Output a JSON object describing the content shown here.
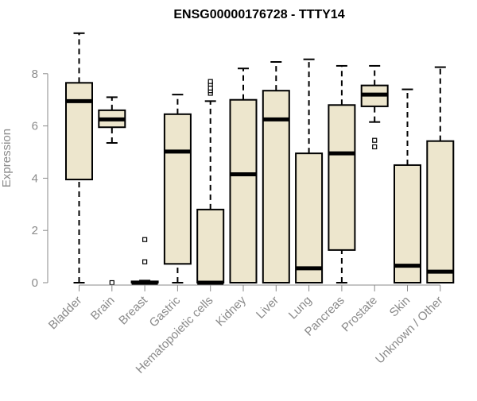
{
  "chart_data": {
    "type": "boxplot",
    "title": "ENSG00000176728 - TTTY14",
    "ylabel": "Expression",
    "xlabel": "",
    "ylim": [
      0,
      9.6
    ],
    "yticks": [
      0,
      2,
      4,
      6,
      8
    ],
    "grid": false,
    "categories": [
      "Bladder",
      "Brain",
      "Breast",
      "Gastric",
      "Hematopoietic cells",
      "Kidney",
      "Liver",
      "Lung",
      "Pancreas",
      "Prostate",
      "Skin",
      "Unknown / Other"
    ],
    "boxes": [
      {
        "category": "Bladder",
        "whisker_low": 0.0,
        "q1": 3.95,
        "median": 6.95,
        "q3": 7.65,
        "whisker_high": 9.55,
        "outliers": []
      },
      {
        "category": "Brain",
        "whisker_low": 5.35,
        "q1": 5.95,
        "median": 6.25,
        "q3": 6.6,
        "whisker_high": 7.1,
        "outliers": [
          0.0
        ]
      },
      {
        "category": "Breast",
        "whisker_low": 0.0,
        "q1": 0.0,
        "median": 0.0,
        "q3": 0.05,
        "whisker_high": 0.08,
        "outliers": [
          0.8,
          1.65
        ]
      },
      {
        "category": "Gastric",
        "whisker_low": 0.0,
        "q1": 0.72,
        "median": 5.02,
        "q3": 6.45,
        "whisker_high": 7.2,
        "outliers": []
      },
      {
        "category": "Hematopoietic cells",
        "whisker_low": 0.0,
        "q1": 0.0,
        "median": 0.0,
        "q3": 2.8,
        "whisker_high": 6.95,
        "outliers": [
          7.25,
          7.35,
          7.45,
          7.6,
          7.7
        ]
      },
      {
        "category": "Kidney",
        "whisker_low": 0.0,
        "q1": 0.0,
        "median": 4.15,
        "q3": 7.0,
        "whisker_high": 8.2,
        "outliers": []
      },
      {
        "category": "Liver",
        "whisker_low": 0.0,
        "q1": 0.0,
        "median": 6.25,
        "q3": 7.35,
        "whisker_high": 8.45,
        "outliers": []
      },
      {
        "category": "Lung",
        "whisker_low": 0.0,
        "q1": 0.0,
        "median": 0.55,
        "q3": 4.95,
        "whisker_high": 8.55,
        "outliers": []
      },
      {
        "category": "Pancreas",
        "whisker_low": 0.0,
        "q1": 1.25,
        "median": 4.95,
        "q3": 6.8,
        "whisker_high": 8.3,
        "outliers": []
      },
      {
        "category": "Prostate",
        "whisker_low": 6.15,
        "q1": 6.75,
        "median": 7.2,
        "q3": 7.55,
        "whisker_high": 8.3,
        "outliers": [
          5.45,
          5.2
        ]
      },
      {
        "category": "Skin",
        "whisker_low": 0.0,
        "q1": 0.0,
        "median": 0.65,
        "q3": 4.5,
        "whisker_high": 7.4,
        "outliers": []
      },
      {
        "category": "Unknown / Other",
        "whisker_low": 0.0,
        "q1": 0.0,
        "median": 0.42,
        "q3": 5.42,
        "whisker_high": 8.25,
        "outliers": []
      }
    ]
  },
  "colors": {
    "box_fill": "#ede6cd",
    "box_stroke": "#000000",
    "median": "#000000",
    "axis_text": "#8a8a8a",
    "axis_line": "#8a8a8a",
    "title": "#000000"
  }
}
